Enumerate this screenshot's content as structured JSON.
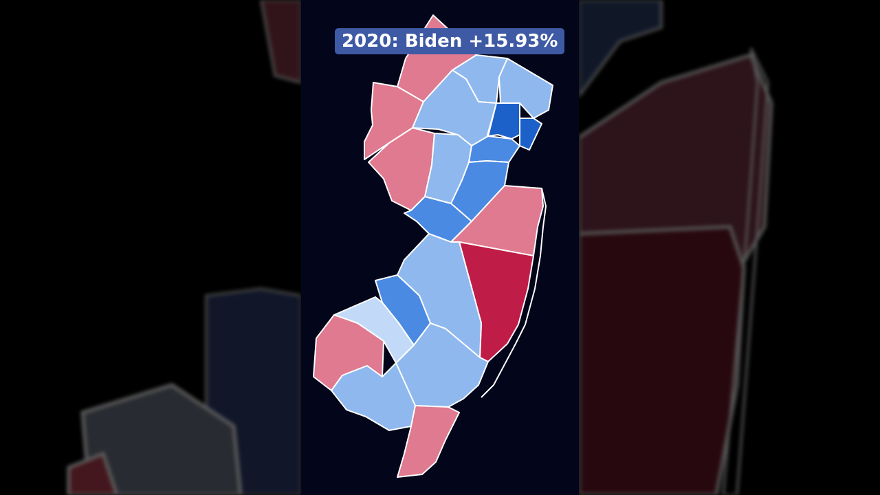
{
  "title": "2020: Biden +15.93%",
  "colors": {
    "background": "#03051a",
    "badge": "#3f5aa5",
    "dem_strong": "#1c61c9",
    "dem_likely": "#4a8ae2",
    "dem_lean": "#8eb8ee",
    "dem_tilt": "#c2daf7",
    "rep_lean": "#df7a90",
    "rep_strong": "#c01c48",
    "border": "#ffffff"
  },
  "legend_scale": [
    "dem_strong",
    "dem_likely",
    "dem_lean",
    "dem_tilt",
    "rep_lean",
    "rep_strong"
  ]
}
